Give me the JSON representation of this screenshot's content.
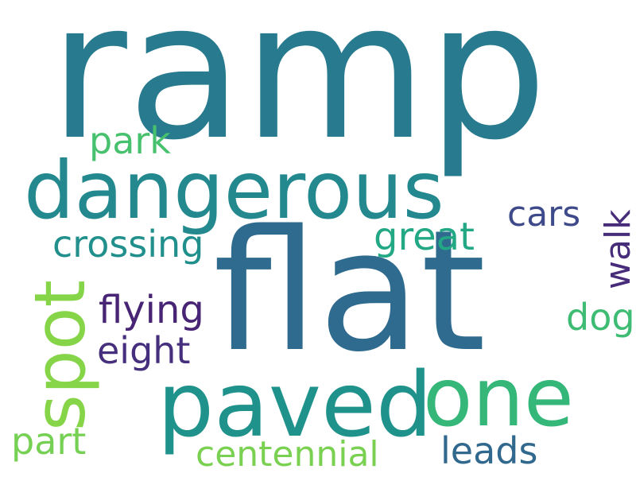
{
  "words": [
    {
      "text": "ramp",
      "color": "#287a8e"
    },
    {
      "text": "flat",
      "color": "#2f6b8e"
    },
    {
      "text": "dangerous",
      "color": "#23898e"
    },
    {
      "text": "paved",
      "color": "#20928c"
    },
    {
      "text": "one",
      "color": "#35b779"
    },
    {
      "text": "spot",
      "color": "#86d549"
    },
    {
      "text": "park",
      "color": "#48c16e"
    },
    {
      "text": "cars",
      "color": "#3e4a89"
    },
    {
      "text": "crossing",
      "color": "#21908d"
    },
    {
      "text": "great",
      "color": "#22a884"
    },
    {
      "text": "walk",
      "color": "#472c7a"
    },
    {
      "text": "flying",
      "color": "#482475"
    },
    {
      "text": "eight",
      "color": "#46307e"
    },
    {
      "text": "dog",
      "color": "#3fbc73"
    },
    {
      "text": "part",
      "color": "#75d054"
    },
    {
      "text": "centennial",
      "color": "#7ad151"
    },
    {
      "text": "leads",
      "color": "#31688e"
    }
  ]
}
